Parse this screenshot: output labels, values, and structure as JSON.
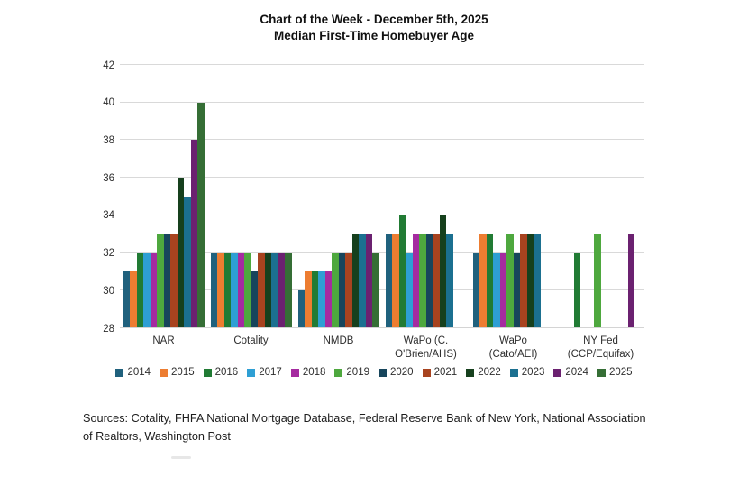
{
  "page": {
    "background": "#FFFFFF",
    "grid_color": "#D9D9D9"
  },
  "chart_data": {
    "type": "bar",
    "title": "Chart of the Week - December 5th, 2025",
    "subtitle": "Median First-Time Homebuyer Age",
    "categories": [
      "NAR",
      "Cotality",
      "NMDB",
      "WaPo (C.\nO'Brien/AHS)",
      "WaPo\n(Cato/AEI)",
      "NY Fed\n(CCP/Equifax)"
    ],
    "ylim": [
      28,
      42
    ],
    "yticks": [
      28,
      30,
      32,
      34,
      36,
      38,
      40,
      42
    ],
    "grid": true,
    "legend_position": "bottom",
    "series": [
      {
        "name": "2014",
        "color": "#20617D",
        "values": [
          31,
          32,
          30,
          33,
          32,
          null
        ]
      },
      {
        "name": "2015",
        "color": "#ED7D31",
        "values": [
          31,
          32,
          31,
          33,
          33,
          null
        ]
      },
      {
        "name": "2016",
        "color": "#217B34",
        "values": [
          32,
          32,
          31,
          34,
          33,
          32
        ]
      },
      {
        "name": "2017",
        "color": "#2E9FD4",
        "values": [
          32,
          32,
          31,
          32,
          32,
          null
        ]
      },
      {
        "name": "2018",
        "color": "#A52BA0",
        "values": [
          32,
          32,
          31,
          33,
          32,
          null
        ]
      },
      {
        "name": "2019",
        "color": "#4EA83E",
        "values": [
          33,
          32,
          32,
          33,
          33,
          33
        ]
      },
      {
        "name": "2020",
        "color": "#17455C",
        "values": [
          33,
          31,
          32,
          33,
          32,
          null
        ]
      },
      {
        "name": "2021",
        "color": "#A8431F",
        "values": [
          33,
          32,
          32,
          33,
          33,
          null
        ]
      },
      {
        "name": "2022",
        "color": "#16401D",
        "values": [
          36,
          32,
          33,
          34,
          33,
          null
        ]
      },
      {
        "name": "2023",
        "color": "#1B7090",
        "values": [
          35,
          32,
          33,
          33,
          33,
          null
        ]
      },
      {
        "name": "2024",
        "color": "#6B2170",
        "values": [
          38,
          32,
          33,
          null,
          null,
          33
        ]
      },
      {
        "name": "2025",
        "color": "#356E35",
        "values": [
          40,
          32,
          32,
          null,
          null,
          null
        ]
      }
    ],
    "source_note": "Sources: Cotality, FHFA National Mortgage Database, Federal Reserve Bank of New York, National Association of Realtors, Washington Post"
  }
}
